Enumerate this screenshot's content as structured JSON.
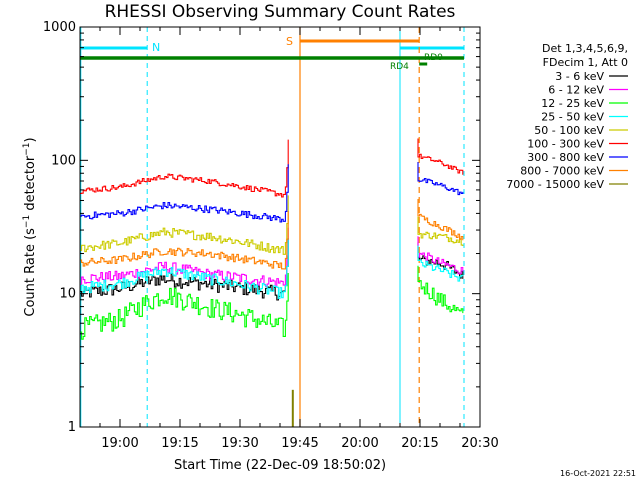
{
  "chart_data": {
    "type": "line",
    "title": "RHESSI Observing Summary Count Rates",
    "xlabel": "Start Time (22-Dec-09 18:50:02)",
    "ylabel": "Count Rate (s",
    "ylabel_sup": "−1",
    "ylabel_rest": " detector",
    "ylabel_sup2": "−1",
    "ylabel_end": ")",
    "timestamp": "16-Oct-2021 22:51",
    "y_scale": "log",
    "ylim": [
      1,
      1000
    ],
    "xlim_minutes": [
      0,
      100
    ],
    "x_ticks": [
      {
        "label": "19:00",
        "min": 10
      },
      {
        "label": "19:15",
        "min": 25
      },
      {
        "label": "19:30",
        "min": 40
      },
      {
        "label": "19:45",
        "min": 55
      },
      {
        "label": "20:00",
        "min": 70
      },
      {
        "label": "20:15",
        "min": 85
      },
      {
        "label": "20:30",
        "min": 100
      }
    ],
    "y_ticks": [
      {
        "label": "1",
        "v": 1
      },
      {
        "label": "10",
        "v": 10
      },
      {
        "label": "100",
        "v": 100
      },
      {
        "label": "1000",
        "v": 1000
      }
    ],
    "legend": {
      "header1": "Det 1,3,4,5,6,9,",
      "header2": "FDecim 1, Att 0",
      "placement": "right"
    },
    "series": [
      {
        "name": "3 - 6 keV",
        "color": "#000000",
        "seg1": [
          [
            0,
            10
          ],
          [
            10,
            11
          ],
          [
            20,
            13
          ],
          [
            30,
            12
          ],
          [
            51,
            10
          ]
        ],
        "seg2": [
          [
            84.5,
            18
          ],
          [
            90,
            17
          ],
          [
            95,
            14
          ],
          [
            96,
            13
          ]
        ]
      },
      {
        "name": "6 - 12 keV",
        "color": "#ff00ff",
        "seg1": [
          [
            0,
            13
          ],
          [
            10,
            13.5
          ],
          [
            21,
            16
          ],
          [
            32,
            14
          ],
          [
            51,
            12
          ]
        ],
        "seg2": [
          [
            84.5,
            20
          ],
          [
            90,
            17
          ],
          [
            95,
            15
          ],
          [
            96,
            14.5
          ]
        ]
      },
      {
        "name": "12 - 25 keV",
        "color": "#00ff00",
        "seg1": [
          [
            0,
            5.5
          ],
          [
            10,
            6.5
          ],
          [
            21,
            10
          ],
          [
            32,
            8
          ],
          [
            51,
            5.5
          ]
        ],
        "seg2": [
          [
            84.5,
            12
          ],
          [
            90,
            9
          ],
          [
            95,
            7
          ],
          [
            96,
            6.5
          ]
        ]
      },
      {
        "name": "25 - 50 keV",
        "color": "#00ffff",
        "seg1": [
          [
            0,
            11
          ],
          [
            10,
            12
          ],
          [
            21,
            15
          ],
          [
            32,
            13
          ],
          [
            51,
            10
          ]
        ],
        "seg2": [
          [
            84.5,
            17
          ],
          [
            90,
            15
          ],
          [
            95,
            13
          ],
          [
            96,
            12.5
          ]
        ]
      },
      {
        "name": "50 - 100 keV",
        "color": "#cccc00",
        "seg1": [
          [
            0,
            22
          ],
          [
            10,
            24
          ],
          [
            21,
            29
          ],
          [
            32,
            27
          ],
          [
            51,
            21
          ]
        ],
        "seg2": [
          [
            84.5,
            28
          ],
          [
            90,
            27
          ],
          [
            95,
            25
          ],
          [
            96,
            24
          ]
        ]
      },
      {
        "name": "100 - 300 keV",
        "color": "#ff0000",
        "seg1": [
          [
            0,
            59
          ],
          [
            10,
            63
          ],
          [
            21,
            76
          ],
          [
            32,
            70
          ],
          [
            51,
            55
          ]
        ],
        "seg2": [
          [
            84.5,
            108
          ],
          [
            90,
            96
          ],
          [
            95,
            82
          ],
          [
            96,
            80
          ]
        ]
      },
      {
        "name": "300 - 800 keV",
        "color": "#0000ff",
        "seg1": [
          [
            0,
            38
          ],
          [
            10,
            40
          ],
          [
            21,
            46
          ],
          [
            32,
            43
          ],
          [
            51,
            36
          ]
        ],
        "seg2": [
          [
            84.5,
            72
          ],
          [
            90,
            65
          ],
          [
            95,
            57
          ],
          [
            96,
            56
          ]
        ]
      },
      {
        "name": "800 - 7000 keV",
        "color": "#ff8000",
        "seg1": [
          [
            0,
            17
          ],
          [
            10,
            18
          ],
          [
            21,
            21
          ],
          [
            32,
            20
          ],
          [
            51,
            16
          ]
        ],
        "seg2": [
          [
            84.5,
            38
          ],
          [
            90,
            32
          ],
          [
            95,
            27
          ],
          [
            96,
            25
          ]
        ]
      },
      {
        "name": "7000 - 15000 keV",
        "color": "#808000",
        "seg1": [],
        "seg2": []
      }
    ],
    "annotations": {
      "night_label": "N",
      "saa_label": "S",
      "rd4_label": "RD4",
      "rd0_label": "RD0"
    }
  }
}
